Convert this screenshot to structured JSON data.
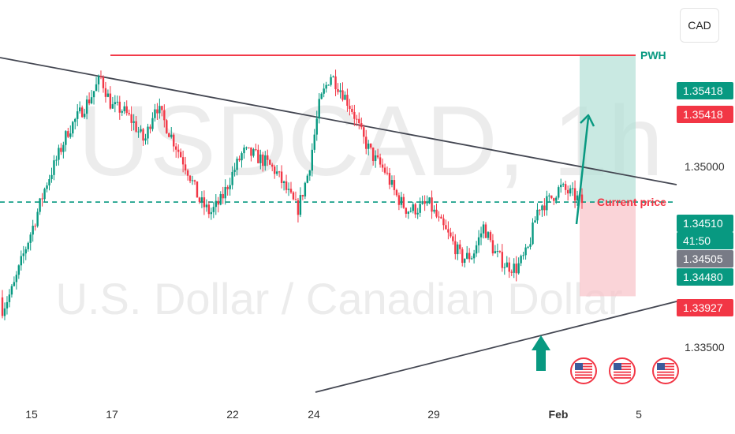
{
  "currency_button": {
    "label": "CAD"
  },
  "watermark": {
    "symbol": "USDCAD",
    "interval": ", 1h",
    "description": "U.S. Dollar / Canadian Dollar"
  },
  "colors": {
    "up": "#089981",
    "down": "#f23645",
    "trendline": "#434651",
    "pwh_line": "#f23645",
    "current_price_line": "#089981",
    "target_zone": "#b7e1d8",
    "stop_zone": "#f8c6cb",
    "badge_green": "#089981",
    "badge_red": "#f23645",
    "badge_gray": "#787b86"
  },
  "price_badges": [
    {
      "label": "1.35418",
      "price": 1.35418,
      "color": "#089981"
    },
    {
      "label": "1.35418",
      "price": 1.35418,
      "color": "#f23645"
    },
    {
      "label": "1.34510",
      "price": 1.3451,
      "color": "#089981"
    },
    {
      "label": "41:50",
      "price": 1.3451,
      "color": "#089981",
      "countdown": true
    },
    {
      "label": "1.34505",
      "price": 1.34505,
      "color": "#787b86"
    },
    {
      "label": "1.34480",
      "price": 1.3448,
      "color": "#089981"
    },
    {
      "label": "1.33927",
      "price": 1.33927,
      "color": "#f23645"
    }
  ],
  "annotations": {
    "pwh": {
      "label": "PWH",
      "price": 1.35418
    },
    "current_price": {
      "label": "Current price",
      "price": 1.3451
    }
  },
  "event_icons": [
    {
      "name": "us-flag-event-icon",
      "date": "Feb 1"
    },
    {
      "name": "us-flag-event-icon",
      "date": "Feb 3"
    },
    {
      "name": "us-flag-event-icon",
      "date": "Feb 5"
    }
  ],
  "chart_data": {
    "type": "candlestick",
    "symbol": "USDCAD",
    "interval": "1h",
    "x_ticks": [
      "15",
      "17",
      "22",
      "24",
      "29",
      "Feb",
      "5"
    ],
    "y_ticks": [
      "1.35000",
      "1.33500"
    ],
    "ylim": [
      1.3327,
      1.3576
    ],
    "grid": false,
    "series": [
      {
        "name": "",
        "anchors": [
          [
            1.3392,
            1.3385
          ],
          [
            1.341,
            1.3398
          ],
          [
            1.3425,
            1.342
          ],
          [
            1.3435,
            1.344
          ],
          [
            1.3455,
            1.3462
          ],
          [
            1.347,
            1.3478
          ],
          [
            1.3488,
            1.3495
          ],
          [
            1.3496,
            1.3505
          ],
          [
            1.3506,
            1.3515
          ],
          [
            1.3518,
            1.3528
          ],
          [
            1.353,
            1.351
          ],
          [
            1.3515,
            1.3508
          ],
          [
            1.3505,
            1.35
          ],
          [
            1.3495,
            1.3488
          ],
          [
            1.35,
            1.3512
          ],
          [
            1.3508,
            1.3498
          ],
          [
            1.349,
            1.3484
          ],
          [
            1.3478,
            1.347
          ],
          [
            1.346,
            1.3452
          ],
          [
            1.3448,
            1.3444
          ],
          [
            1.3446,
            1.3452
          ],
          [
            1.3458,
            1.3468
          ],
          [
            1.3474,
            1.3482
          ],
          [
            1.3487,
            1.348
          ],
          [
            1.3478,
            1.3476
          ],
          [
            1.3472,
            1.347
          ],
          [
            1.3466,
            1.3458
          ],
          [
            1.3456,
            1.3446
          ],
          [
            1.3454,
            1.347
          ],
          [
            1.3488,
            1.3512
          ],
          [
            1.3524,
            1.353
          ],
          [
            1.3526,
            1.352
          ],
          [
            1.3516,
            1.3508
          ],
          [
            1.35,
            1.349
          ],
          [
            1.3485,
            1.3478
          ],
          [
            1.3474,
            1.347
          ],
          [
            1.3465,
            1.3455
          ],
          [
            1.345,
            1.3446
          ],
          [
            1.3452,
            1.3447
          ],
          [
            1.3444,
            1.345
          ],
          [
            1.3446,
            1.3438
          ],
          [
            1.3434,
            1.3428
          ],
          [
            1.342,
            1.3416
          ],
          [
            1.3414,
            1.3418
          ],
          [
            1.3424,
            1.3436
          ],
          [
            1.343,
            1.342
          ],
          [
            1.3416,
            1.3412
          ],
          [
            1.342,
            1.341
          ],
          [
            1.3398,
            1.342
          ],
          [
            1.344,
            1.3448
          ],
          [
            1.3455,
            1.3452
          ],
          [
            1.3458,
            1.346
          ],
          [
            1.3466,
            1.3456
          ],
          [
            1.3452,
            1.3451
          ]
        ]
      }
    ],
    "price_levels": {
      "pwh": 1.35418,
      "current": 1.3451,
      "target": 1.35418,
      "stop": 1.33927
    }
  }
}
